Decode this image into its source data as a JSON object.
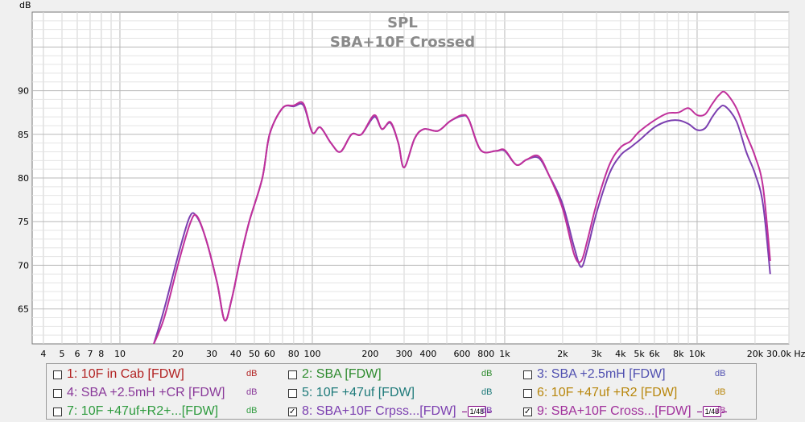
{
  "chart_data": {
    "type": "line",
    "title": "SPL",
    "subtitle": "SBA+10F Crossed",
    "ylabel": "dB",
    "xunit": "Hz",
    "xscale": "log",
    "xlim": [
      3.5,
      30000
    ],
    "ylim": [
      61,
      99
    ],
    "grid": true,
    "y_ticks": [
      65,
      70,
      75,
      80,
      85,
      90
    ],
    "x_tick_labels": [
      {
        "v": 4,
        "t": "4"
      },
      {
        "v": 5,
        "t": "5"
      },
      {
        "v": 6,
        "t": "6"
      },
      {
        "v": 7,
        "t": "7"
      },
      {
        "v": 8,
        "t": "8"
      },
      {
        "v": 10,
        "t": "10"
      },
      {
        "v": 20,
        "t": "20"
      },
      {
        "v": 30,
        "t": "30"
      },
      {
        "v": 40,
        "t": "40"
      },
      {
        "v": 50,
        "t": "50"
      },
      {
        "v": 60,
        "t": "60"
      },
      {
        "v": 80,
        "t": "80"
      },
      {
        "v": 100,
        "t": "100"
      },
      {
        "v": 200,
        "t": "200"
      },
      {
        "v": 300,
        "t": "300"
      },
      {
        "v": 400,
        "t": "400"
      },
      {
        "v": 600,
        "t": "600"
      },
      {
        "v": 800,
        "t": "800"
      },
      {
        "v": 1000,
        "t": "1k"
      },
      {
        "v": 2000,
        "t": "2k"
      },
      {
        "v": 3000,
        "t": "3k"
      },
      {
        "v": 4000,
        "t": "4k"
      },
      {
        "v": 5000,
        "t": "5k"
      },
      {
        "v": 6000,
        "t": "6k"
      },
      {
        "v": 8000,
        "t": "8k"
      },
      {
        "v": 10000,
        "t": "10k"
      },
      {
        "v": 20000,
        "t": "20k"
      },
      {
        "v": 30000,
        "t": "30.0k Hz"
      }
    ],
    "series": [
      {
        "name": "8: SBA+10F Crpss...[FDW]",
        "color": "#7b3fb0",
        "points": [
          [
            15,
            61
          ],
          [
            17,
            65
          ],
          [
            20,
            71
          ],
          [
            23,
            75.5
          ],
          [
            25,
            75.6
          ],
          [
            28,
            73
          ],
          [
            32,
            68
          ],
          [
            35,
            63.7
          ],
          [
            38,
            66
          ],
          [
            42,
            70.5
          ],
          [
            47,
            75
          ],
          [
            55,
            80
          ],
          [
            60,
            85
          ],
          [
            70,
            88
          ],
          [
            80,
            88.2
          ],
          [
            90,
            88.3
          ],
          [
            100,
            85.2
          ],
          [
            110,
            85.8
          ],
          [
            125,
            84
          ],
          [
            140,
            83
          ],
          [
            160,
            85
          ],
          [
            180,
            85
          ],
          [
            210,
            87
          ],
          [
            230,
            85.6
          ],
          [
            255,
            86.3
          ],
          [
            280,
            84
          ],
          [
            300,
            81.2
          ],
          [
            340,
            84.5
          ],
          [
            380,
            85.6
          ],
          [
            450,
            85.4
          ],
          [
            520,
            86.5
          ],
          [
            600,
            87.1
          ],
          [
            650,
            86.7
          ],
          [
            750,
            83.2
          ],
          [
            900,
            83.1
          ],
          [
            1000,
            83.1
          ],
          [
            1150,
            81.5
          ],
          [
            1300,
            82.1
          ],
          [
            1500,
            82.3
          ],
          [
            1700,
            80.3
          ],
          [
            2000,
            77
          ],
          [
            2300,
            72
          ],
          [
            2500,
            69.8
          ],
          [
            2700,
            72
          ],
          [
            3000,
            76
          ],
          [
            3500,
            80.5
          ],
          [
            4000,
            82.6
          ],
          [
            4500,
            83.5
          ],
          [
            5000,
            84.3
          ],
          [
            6000,
            85.8
          ],
          [
            7000,
            86.5
          ],
          [
            8000,
            86.6
          ],
          [
            9000,
            86.2
          ],
          [
            10000,
            85.5
          ],
          [
            11000,
            85.7
          ],
          [
            12000,
            87
          ],
          [
            13000,
            88
          ],
          [
            14000,
            88.2
          ],
          [
            16000,
            86.5
          ],
          [
            18000,
            83
          ],
          [
            20000,
            80.5
          ],
          [
            22000,
            77
          ],
          [
            24000,
            69
          ]
        ]
      },
      {
        "name": "9: SBA+10F Cross...[FDW]",
        "color": "#c0309b",
        "points": [
          [
            15,
            61
          ],
          [
            17,
            64
          ],
          [
            20,
            70
          ],
          [
            23,
            74.6
          ],
          [
            25,
            75.7
          ],
          [
            28,
            73
          ],
          [
            32,
            68
          ],
          [
            35,
            63.7
          ],
          [
            38,
            66
          ],
          [
            42,
            70.5
          ],
          [
            47,
            75
          ],
          [
            55,
            80
          ],
          [
            60,
            85
          ],
          [
            70,
            88
          ],
          [
            80,
            88.3
          ],
          [
            90,
            88.5
          ],
          [
            100,
            85.2
          ],
          [
            110,
            85.8
          ],
          [
            125,
            84
          ],
          [
            140,
            83
          ],
          [
            160,
            85
          ],
          [
            180,
            85
          ],
          [
            210,
            87.2
          ],
          [
            230,
            85.6
          ],
          [
            255,
            86.4
          ],
          [
            280,
            84
          ],
          [
            300,
            81.2
          ],
          [
            340,
            84.5
          ],
          [
            380,
            85.6
          ],
          [
            450,
            85.4
          ],
          [
            520,
            86.5
          ],
          [
            600,
            87.2
          ],
          [
            650,
            86.7
          ],
          [
            750,
            83.2
          ],
          [
            900,
            83.1
          ],
          [
            1000,
            83.2
          ],
          [
            1150,
            81.5
          ],
          [
            1300,
            82.1
          ],
          [
            1500,
            82.5
          ],
          [
            1700,
            80.3
          ],
          [
            2000,
            76.5
          ],
          [
            2300,
            71.2
          ],
          [
            2500,
            70.5
          ],
          [
            2700,
            73
          ],
          [
            3000,
            77
          ],
          [
            3500,
            81.5
          ],
          [
            4000,
            83.5
          ],
          [
            4500,
            84.2
          ],
          [
            5000,
            85.3
          ],
          [
            6000,
            86.6
          ],
          [
            7000,
            87.4
          ],
          [
            8000,
            87.5
          ],
          [
            9000,
            88
          ],
          [
            10000,
            87.2
          ],
          [
            11000,
            87.3
          ],
          [
            12000,
            88.5
          ],
          [
            13000,
            89.5
          ],
          [
            14000,
            89.8
          ],
          [
            16000,
            88
          ],
          [
            18000,
            85
          ],
          [
            20000,
            82.5
          ],
          [
            22000,
            79
          ],
          [
            24000,
            70.5
          ]
        ]
      }
    ],
    "legend": {
      "placement": "bottom",
      "unit_label": "dB",
      "smoothing_label": "1/48",
      "items": [
        {
          "label": "1: 10F in Cab [FDW]",
          "checked": false,
          "color": "#b22222"
        },
        {
          "label": "2: SBA [FDW]",
          "checked": false,
          "color": "#2e8b2e"
        },
        {
          "label": "3: SBA +2.5mH [FDW]",
          "checked": false,
          "color": "#5050b0"
        },
        {
          "label": "4: SBA +2.5mH +CR [FDW]",
          "checked": false,
          "color": "#8a3a9a"
        },
        {
          "label": "5: 10F +47uf [FDW]",
          "checked": false,
          "color": "#1e7a7a"
        },
        {
          "label": "6: 10F +47uf +R2 [FDW]",
          "checked": false,
          "color": "#b8860b"
        },
        {
          "label": "7: 10F +47uf+R2+...[FDW]",
          "checked": false,
          "color": "#2e9b3e"
        },
        {
          "label": "8: SBA+10F Crpss...[FDW]",
          "checked": true,
          "color": "#7b3fb0"
        },
        {
          "label": "9: SBA+10F Cross...[FDW]",
          "checked": true,
          "color": "#a0309b"
        }
      ]
    }
  }
}
